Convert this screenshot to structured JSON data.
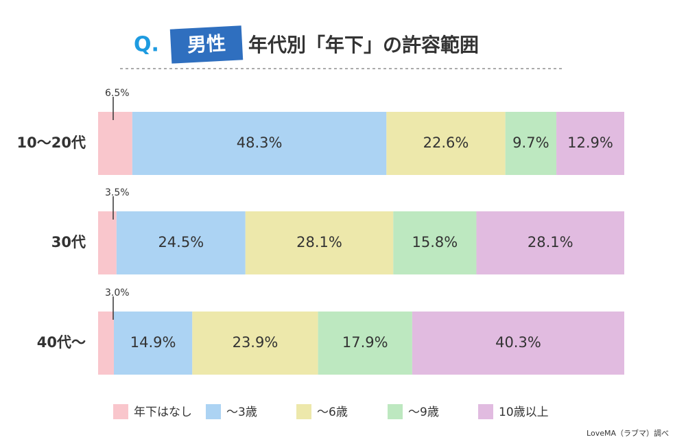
{
  "chart_data": {
    "type": "bar",
    "orientation": "horizontal",
    "stacked": true,
    "title_prefix": "Q.",
    "title_badge": "男性",
    "title": "年代別「年下」の許容範囲",
    "source": "LoveMA（ラブマ）調べ",
    "categories": [
      "10〜20代",
      "30代",
      "40代〜"
    ],
    "xlim": [
      0,
      100
    ],
    "series": [
      {
        "name": "年下はなし",
        "color": "#f9c6cc",
        "values": [
          6.5,
          3.5,
          3.0
        ],
        "value_labels": [
          "6.5%",
          "3.5%",
          "3.0%"
        ]
      },
      {
        "name": "〜3歳",
        "color": "#acd3f3",
        "values": [
          48.3,
          24.5,
          14.9
        ],
        "value_labels": [
          "48.3%",
          "24.5%",
          "14.9%"
        ]
      },
      {
        "name": "〜6歳",
        "color": "#ede8ab",
        "values": [
          22.6,
          28.1,
          23.9
        ],
        "value_labels": [
          "22.6%",
          "28.1%",
          "23.9%"
        ]
      },
      {
        "name": "〜9歳",
        "color": "#bde8c0",
        "values": [
          9.7,
          15.8,
          17.9
        ],
        "value_labels": [
          "9.7%",
          "15.8%",
          "17.9%"
        ]
      },
      {
        "name": "10歳以上",
        "color": "#e1bbe0",
        "values": [
          12.9,
          28.1,
          40.3
        ],
        "value_labels": [
          "12.9%",
          "28.1%",
          "40.3%"
        ]
      }
    ]
  }
}
